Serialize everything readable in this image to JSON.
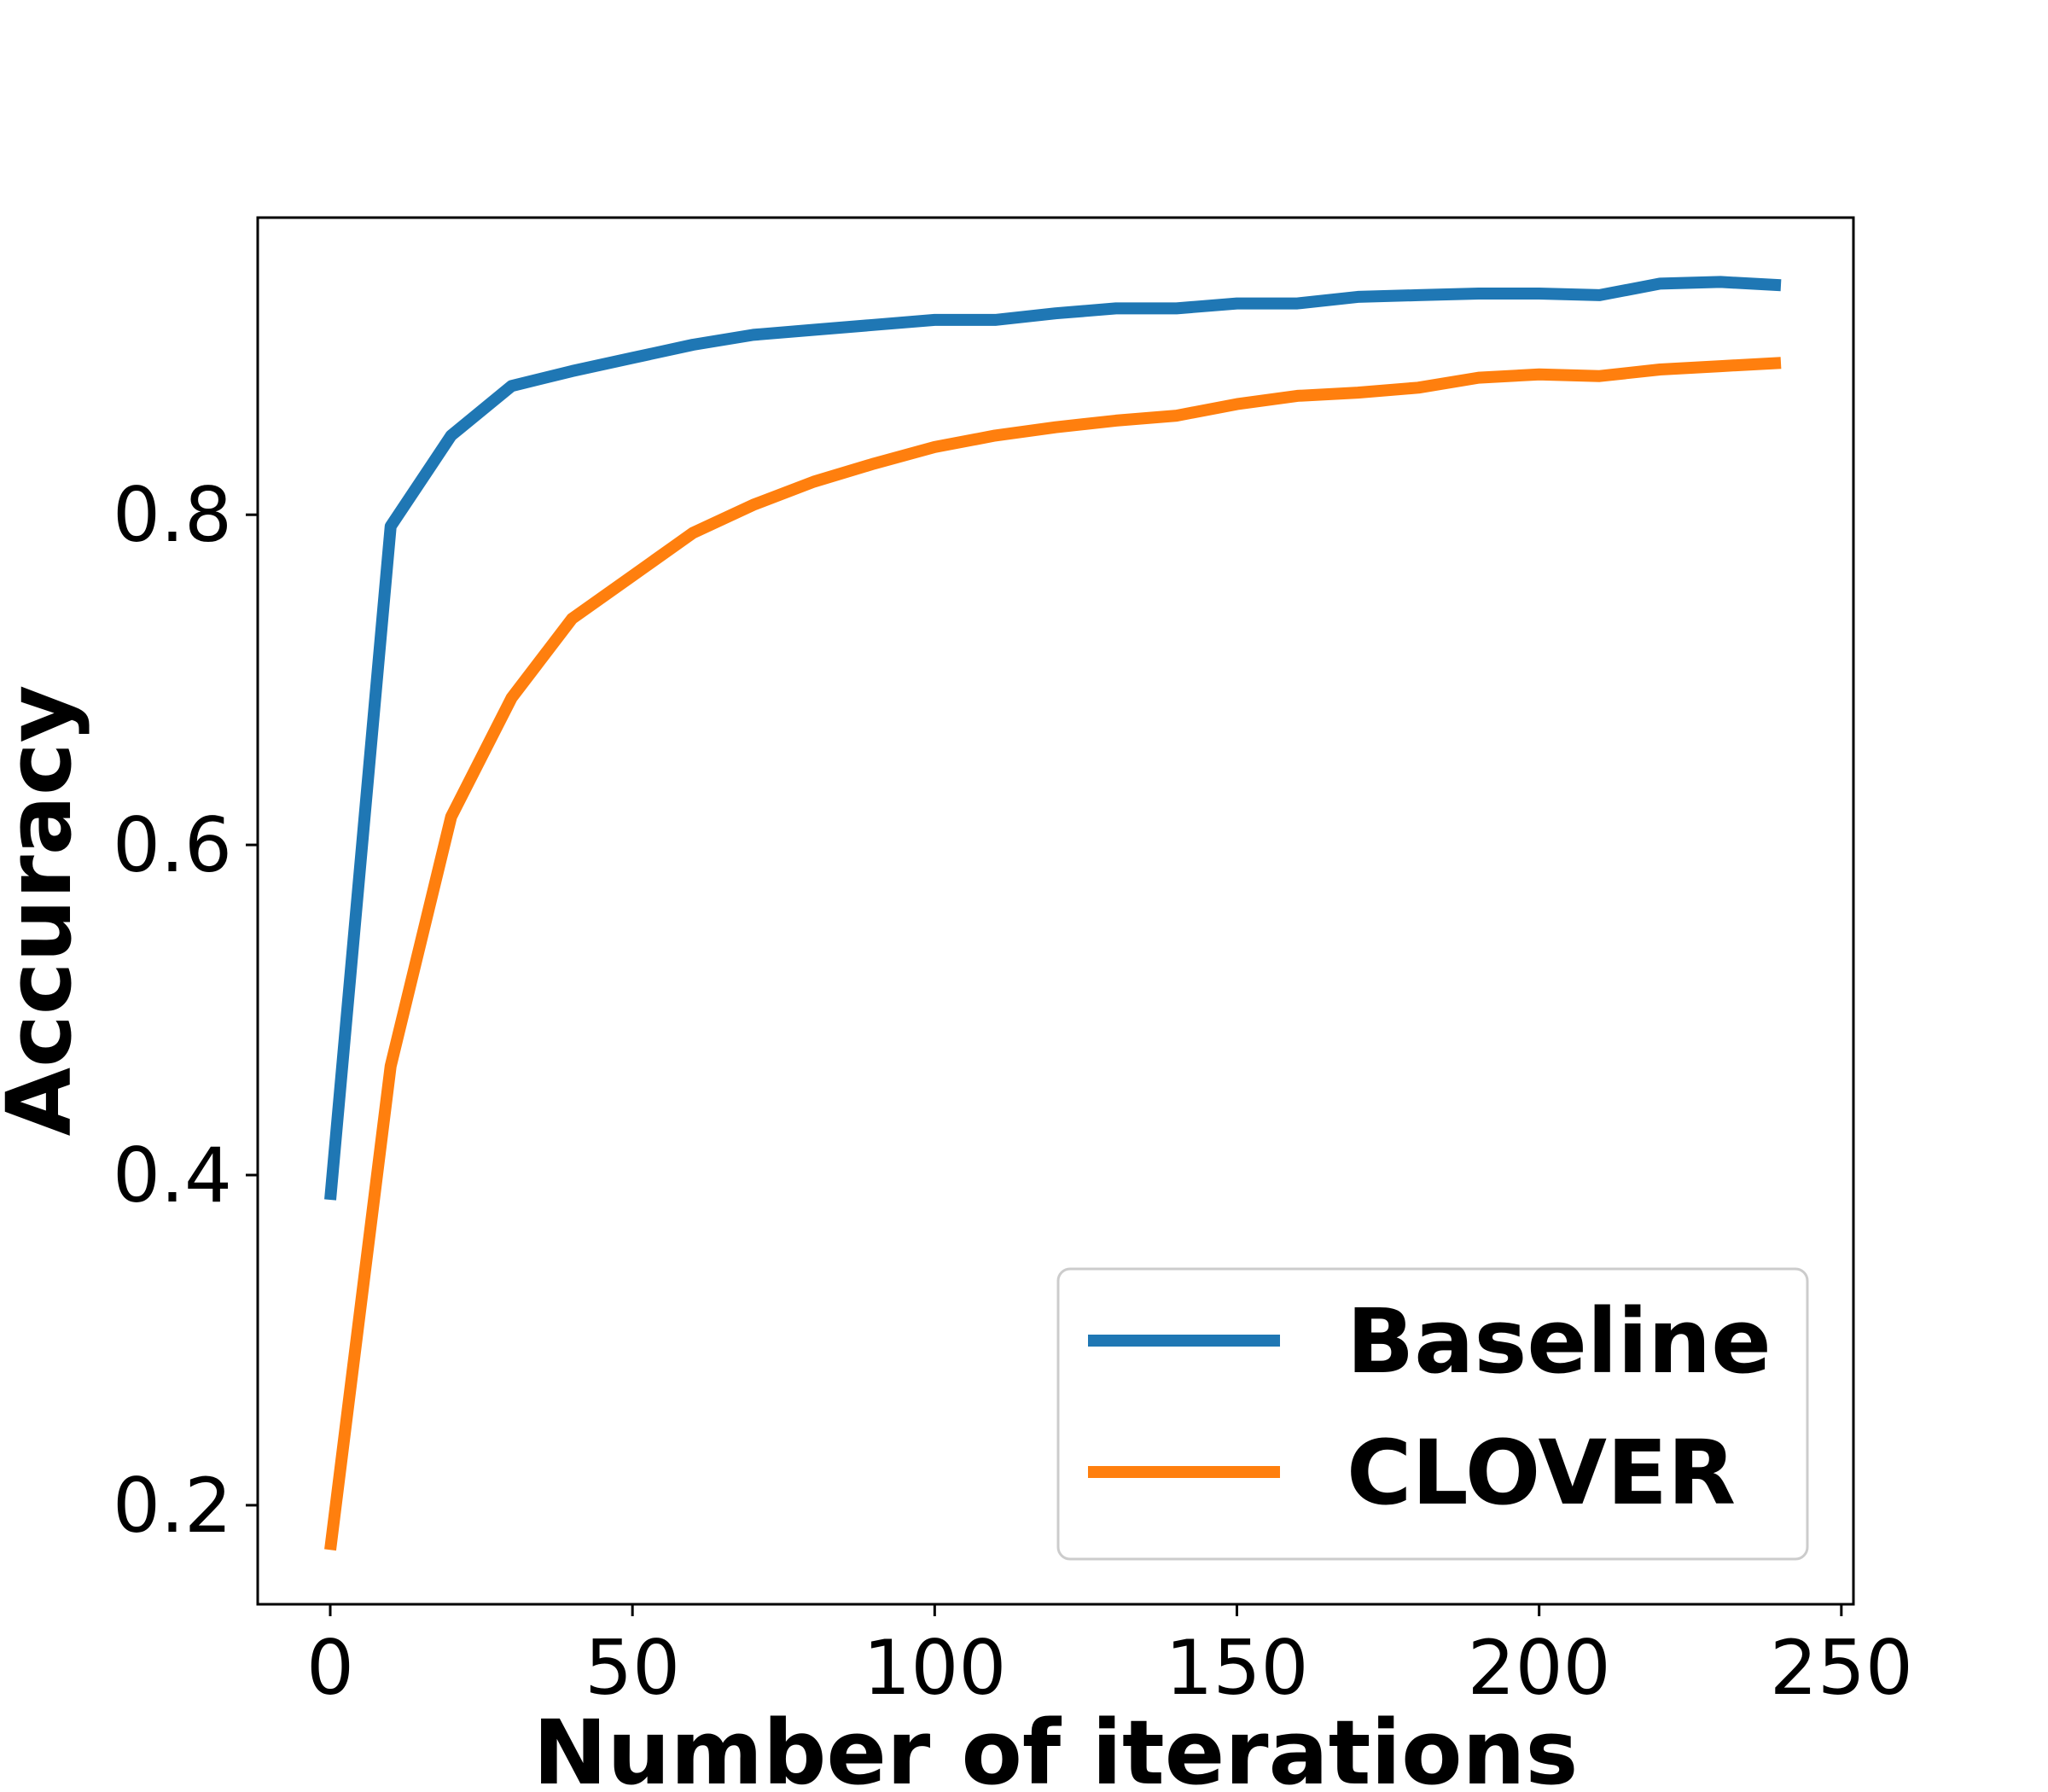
{
  "chart_data": {
    "type": "line",
    "title": "",
    "xlabel": "Number of iterations",
    "ylabel": "Accuracy",
    "xlim": [
      -12,
      252
    ],
    "ylim": [
      0.14,
      0.98
    ],
    "xticks": [
      0,
      50,
      100,
      150,
      200,
      250
    ],
    "yticks": [
      0.2,
      0.4,
      0.6,
      0.8
    ],
    "xtick_labels": [
      "0",
      "50",
      "100",
      "150",
      "200",
      "250"
    ],
    "ytick_labels": [
      "0.2",
      "0.4",
      "0.6",
      "0.8"
    ],
    "grid": false,
    "legend_position": "lower-right",
    "x": [
      0,
      10,
      20,
      30,
      40,
      50,
      60,
      70,
      80,
      90,
      100,
      110,
      120,
      130,
      140,
      150,
      160,
      170,
      180,
      190,
      200,
      210,
      220,
      230,
      240
    ],
    "series": [
      {
        "name": "Baseline",
        "color": "#1f77b4",
        "values": [
          0.385,
          0.793,
          0.848,
          0.878,
          0.887,
          0.895,
          0.903,
          0.909,
          0.912,
          0.915,
          0.918,
          0.918,
          0.922,
          0.925,
          0.925,
          0.928,
          0.928,
          0.932,
          0.933,
          0.934,
          0.934,
          0.933,
          0.94,
          0.941,
          0.939
        ]
      },
      {
        "name": "CLOVER",
        "color": "#ff7f0e",
        "values": [
          0.173,
          0.466,
          0.617,
          0.689,
          0.737,
          0.763,
          0.789,
          0.806,
          0.82,
          0.831,
          0.841,
          0.848,
          0.853,
          0.857,
          0.86,
          0.867,
          0.872,
          0.874,
          0.877,
          0.883,
          0.885,
          0.884,
          0.888,
          0.89,
          0.892
        ]
      }
    ]
  }
}
